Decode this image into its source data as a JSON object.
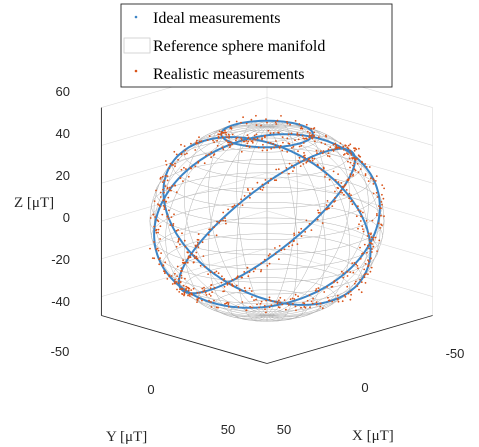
{
  "chart_data": {
    "type": "scatter",
    "plot_kind": "3d",
    "title": "",
    "xlabel": "X [μT]",
    "ylabel": "Y [μT]",
    "zlabel": "Z [μT]",
    "xlim": [
      -50,
      50
    ],
    "ylim": [
      -50,
      50
    ],
    "zlim": [
      -50,
      60
    ],
    "x_ticks": [
      "-50",
      "0",
      "50"
    ],
    "y_ticks": [
      "-50",
      "0",
      "50"
    ],
    "z_ticks": [
      "60",
      "40",
      "20",
      "0",
      "-20",
      "-40"
    ],
    "sphere_radius": 50,
    "grid": true,
    "legend_position": "top",
    "series": [
      {
        "name": "Ideal measurements",
        "marker": "line",
        "color": "#3d85c6",
        "planes": [
          {
            "a": 0.0,
            "c": 0.85
          },
          {
            "a": 1.2,
            "c": 0.85
          },
          {
            "a": 2.3,
            "c": 0.85
          }
        ],
        "top_ring_z": 46
      },
      {
        "name": "Reference sphere manifold",
        "marker": "mesh",
        "color": "#b4b4b4"
      },
      {
        "name": "Realistic measurements",
        "marker": "dot",
        "color": "#d95319",
        "noise": 2.5,
        "points_per_loop": 260
      }
    ]
  }
}
